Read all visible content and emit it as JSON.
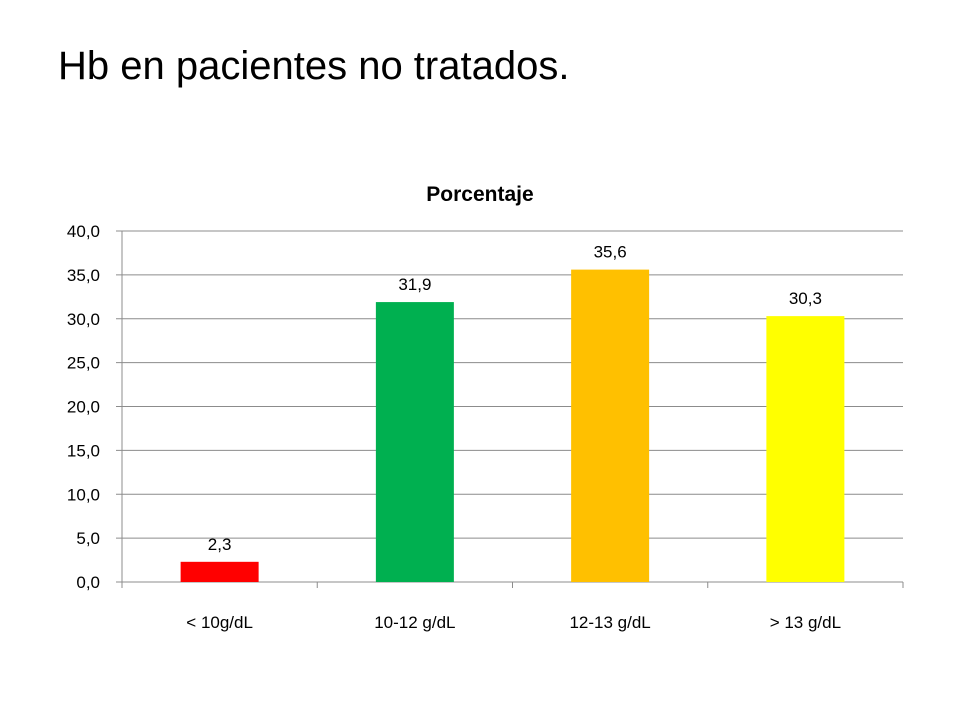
{
  "slide": {
    "title": "Hb en pacientes no tratados."
  },
  "chart_data": {
    "type": "bar",
    "title": "Porcentaje",
    "xlabel": "",
    "ylabel": "",
    "categories": [
      "< 10g/dL",
      "10-12 g/dL",
      "12-13 g/dL",
      "> 13 g/dL"
    ],
    "values": [
      2.3,
      31.9,
      35.6,
      30.3
    ],
    "value_labels": [
      "2,3",
      "31,9",
      "35,6",
      "30,3"
    ],
    "bar_colors": [
      "#FF0000",
      "#00B050",
      "#FFC000",
      "#FFFF00"
    ],
    "ylim": [
      0,
      40
    ],
    "yticks": [
      0,
      5,
      10,
      15,
      20,
      25,
      30,
      35,
      40
    ],
    "ytick_labels": [
      "0,0",
      "5,0",
      "10,0",
      "15,0",
      "20,0",
      "25,0",
      "30,0",
      "35,0",
      "40,0"
    ],
    "grid": true,
    "legend": "none"
  }
}
